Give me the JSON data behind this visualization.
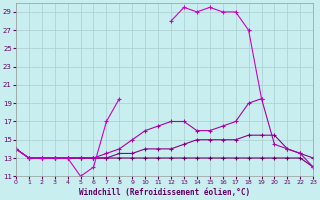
{
  "xlabel": "Windchill (Refroidissement éolien,°C)",
  "background_color": "#c8eef0",
  "grid_color": "#aaccd0",
  "xlim": [
    0,
    23
  ],
  "ylim": [
    11,
    30
  ],
  "xticks": [
    0,
    1,
    2,
    3,
    4,
    5,
    6,
    7,
    8,
    9,
    10,
    11,
    12,
    13,
    14,
    15,
    16,
    17,
    18,
    19,
    20,
    21,
    22,
    23
  ],
  "yticks": [
    11,
    13,
    15,
    17,
    19,
    21,
    23,
    25,
    27,
    29
  ],
  "curve1_color": "#cc00cc",
  "curve2_color": "#aa00aa",
  "curve3_color": "#880088",
  "curve4_color": "#660066",
  "curve1_x": [
    0,
    1,
    2,
    3,
    4,
    5,
    6,
    7,
    8,
    9,
    10,
    11,
    12,
    13,
    14,
    15,
    16,
    17,
    18,
    19,
    20,
    21,
    22,
    23
  ],
  "curve1_y": [
    14,
    13,
    13,
    13,
    13,
    11,
    12,
    17,
    19.5,
    null,
    null,
    null,
    28,
    29.5,
    29,
    29.5,
    29,
    29,
    27,
    19.5,
    null,
    null,
    null,
    12
  ],
  "curve2_x": [
    0,
    1,
    2,
    3,
    4,
    5,
    6,
    7,
    8,
    9,
    10,
    11,
    12,
    13,
    14,
    15,
    16,
    17,
    18,
    19,
    20,
    21,
    22,
    23
  ],
  "curve2_y": [
    14,
    13,
    13,
    13,
    13,
    13,
    13,
    13.5,
    14,
    15,
    16,
    16.5,
    17,
    17,
    16,
    16,
    16.5,
    17,
    19,
    19.5,
    14.5,
    14,
    13.5,
    12
  ],
  "curve3_x": [
    0,
    1,
    2,
    3,
    4,
    5,
    6,
    7,
    8,
    9,
    10,
    11,
    12,
    13,
    14,
    15,
    16,
    17,
    18,
    19,
    20,
    21,
    22,
    23
  ],
  "curve3_y": [
    14,
    13,
    13,
    13,
    13,
    13,
    13,
    13,
    13.5,
    13.5,
    14,
    14,
    14,
    14.5,
    15,
    15,
    15,
    15,
    15.5,
    15.5,
    15.5,
    14,
    13.5,
    13
  ],
  "curve4_x": [
    0,
    1,
    2,
    3,
    4,
    5,
    6,
    7,
    8,
    9,
    10,
    11,
    12,
    13,
    14,
    15,
    16,
    17,
    18,
    19,
    20,
    21,
    22,
    23
  ],
  "curve4_y": [
    14,
    13,
    13,
    13,
    13,
    13,
    13,
    13,
    13,
    13,
    13,
    13,
    13,
    13,
    13,
    13,
    13,
    13,
    13,
    13,
    13,
    13,
    13,
    12
  ]
}
